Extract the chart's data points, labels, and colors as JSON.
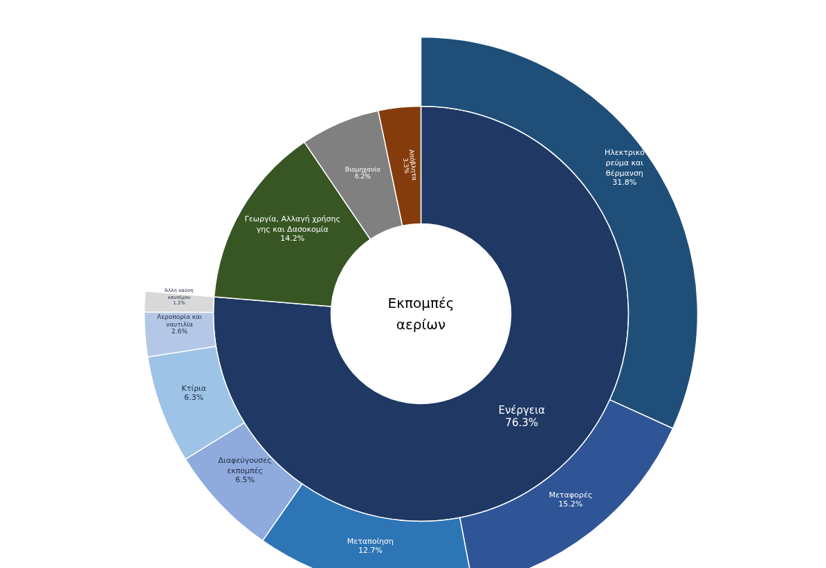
{
  "chart_data": {
    "type": "other",
    "title": "Εκπομπές αερίων",
    "data_labels": true,
    "categories": [
      "Ενέργεια",
      "Γεωργία, Αλλαγή χρήσης γης και Δασοκομία",
      "Βιομηχανία",
      "Απόβλητα",
      "Ηλεκτρικό ρεύμα και θέρμανση",
      "Μεταφορές",
      "Μεταποίηση",
      "Διαφεύγουσες εκπομπές",
      "Κτίρια",
      "Αεροπορία και ναυτιλία",
      "Άλλη καύση καυσίμου"
    ],
    "series": [
      {
        "values": [
          76.3,
          14.2,
          6.2,
          3.3,
          null,
          null,
          null,
          null,
          null,
          null,
          null
        ],
        "value_labels": [
          "76.3%",
          "14.2%",
          "6.2%",
          "3.3%",
          null,
          null,
          null,
          null,
          null,
          null,
          null
        ],
        "colors": [
          "#1f3864",
          "#375623",
          "#808080",
          "#843c0c",
          null,
          null,
          null,
          null,
          null,
          null,
          null
        ]
      },
      {
        "values": [
          null,
          null,
          null,
          null,
          31.8,
          15.2,
          12.7,
          6.5,
          6.3,
          2.6,
          1.2
        ],
        "value_labels": [
          null,
          null,
          null,
          null,
          "31.8%",
          "15.2%",
          "12.7%",
          "6.5%",
          "6.3%",
          "2.6%",
          "1.2%"
        ],
        "colors": [
          null,
          null,
          null,
          null,
          "#1f4e79",
          "#2f5597",
          "#2e75b6",
          "#8faadc",
          "#9dc3e6",
          "#b4c7e7",
          "#d9d9d9"
        ]
      }
    ]
  }
}
